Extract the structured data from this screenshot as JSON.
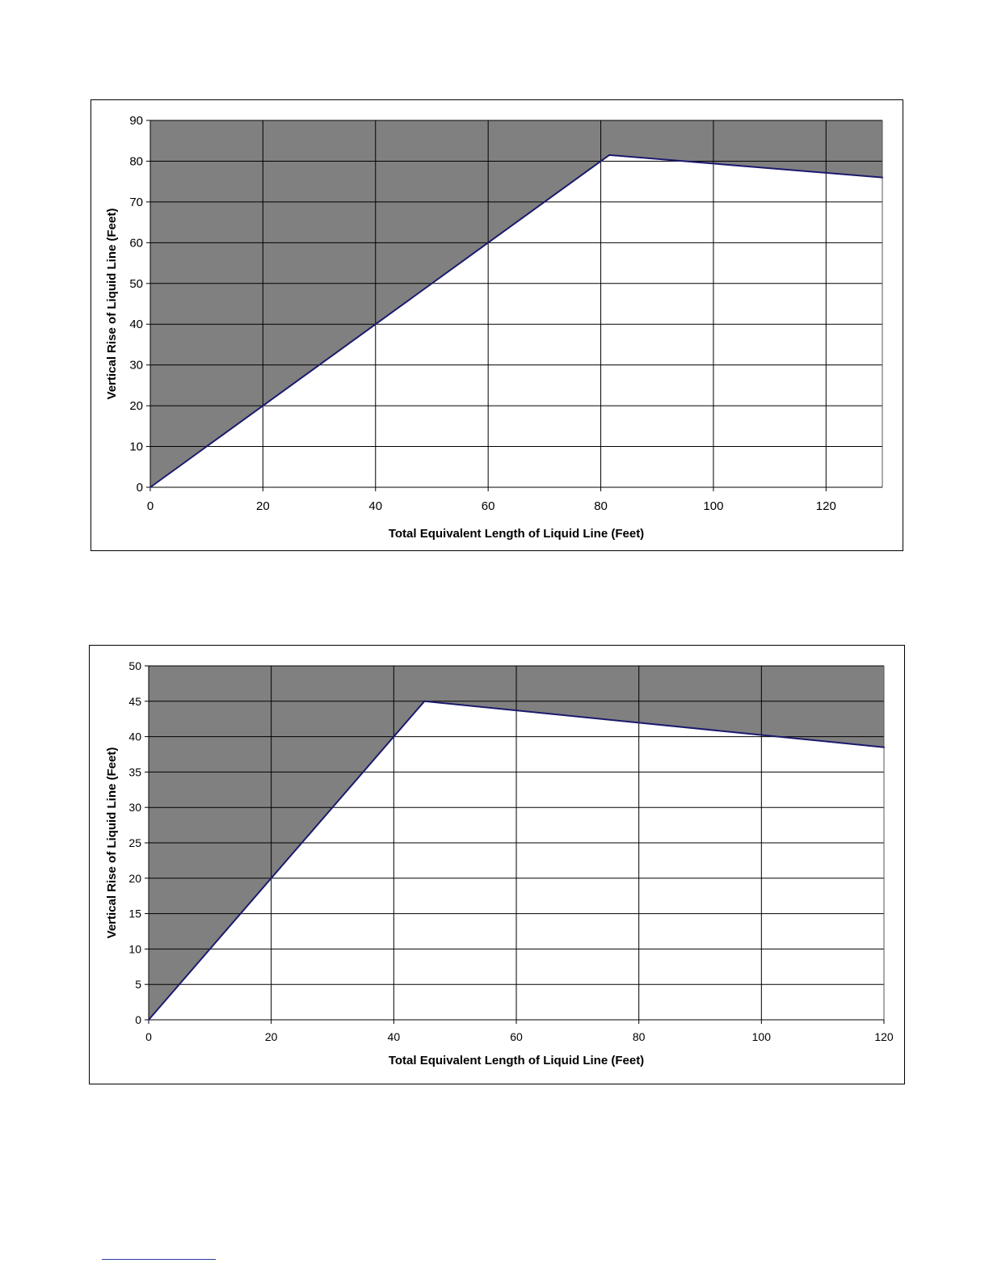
{
  "chart_data": [
    {
      "type": "area",
      "title": "",
      "xlabel": "Total Equivalent Length of Liquid Line (Feet)",
      "ylabel": "Vertical Rise of Liquid Line (Feet)",
      "xlim": [
        0,
        130
      ],
      "ylim": [
        0,
        90
      ],
      "x_ticks": [
        0,
        20,
        40,
        60,
        80,
        100,
        120
      ],
      "y_ticks": [
        0,
        10,
        20,
        30,
        40,
        50,
        60,
        70,
        80,
        90
      ],
      "x_tick_labels": [
        "0",
        "20",
        "40",
        "60",
        "80",
        "100",
        "120"
      ],
      "y_tick_labels": [
        "0",
        "10",
        "20",
        "30",
        "40",
        "50",
        "60",
        "70",
        "80",
        "90"
      ],
      "grid": true,
      "x": [
        0,
        81.5,
        130
      ],
      "y": [
        0,
        81.5,
        76
      ],
      "fill_color": "#808080",
      "line_color": "#1a1a6e",
      "fill_region": "above-line"
    },
    {
      "type": "area",
      "title": "",
      "xlabel": "Total Equivalent Length of Liquid Line (Feet)",
      "ylabel": "Vertical Rise of Liquid Line (Feet)",
      "xlim": [
        0,
        120
      ],
      "ylim": [
        0,
        50
      ],
      "x_ticks": [
        0,
        20,
        40,
        60,
        80,
        100,
        120
      ],
      "y_ticks": [
        0,
        5,
        10,
        15,
        20,
        25,
        30,
        35,
        40,
        45,
        50
      ],
      "x_tick_labels": [
        "0",
        "20",
        "40",
        "60",
        "80",
        "100",
        "120"
      ],
      "y_tick_labels": [
        "0",
        "5",
        "10",
        "15",
        "20",
        "25",
        "30",
        "35",
        "40",
        "45",
        "50"
      ],
      "grid": true,
      "x": [
        0,
        45,
        120
      ],
      "y": [
        0,
        45,
        38.5
      ],
      "fill_color": "#808080",
      "line_color": "#1a1a6e",
      "fill_region": "above-line"
    }
  ]
}
